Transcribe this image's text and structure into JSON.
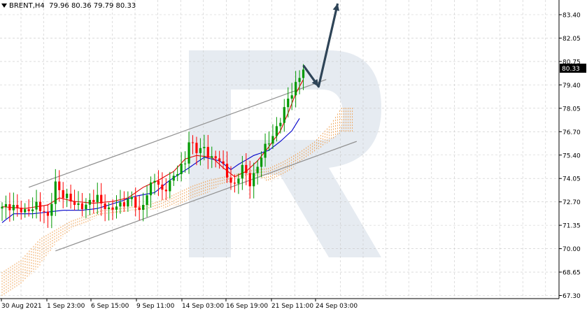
{
  "header": {
    "symbol": "BRENT,H4",
    "ohlc": "79.96 80.36 79.79 80.33"
  },
  "colors": {
    "bull_candle": "#009900",
    "bear_candle": "#ff0000",
    "tenkan": "#e00000",
    "kijun": "#0000cc",
    "cloud": "#f0a050",
    "channel": "#909090",
    "arrow": "#2e4457",
    "price_badge_bg": "#000000",
    "price_badge_fg": "#ffffff",
    "watermark": "#e6ebf1"
  },
  "chart_data": {
    "type": "candlestick",
    "indicators": [
      "Ichimoku Kinko Hyo"
    ],
    "ylim": [
      67.3,
      84.2
    ],
    "y_ticks": [
      "83.40",
      "82.05",
      "80.75",
      "79.40",
      "78.05",
      "76.70",
      "75.40",
      "74.05",
      "72.70",
      "71.35",
      "70.00",
      "68.65",
      "67.30"
    ],
    "current_price_label": "80.33",
    "x_ticks": [
      "30 Aug 2021",
      "1 Sep 23:00",
      "6 Sep 15:00",
      "9 Sep 11:00",
      "14 Sep 03:00",
      "16 Sep 19:00",
      "21 Sep 11:00",
      "24 Sep 03:00"
    ],
    "grid": true,
    "price_path": [
      [
        0,
        72.4
      ],
      [
        3,
        72.6
      ],
      [
        6,
        72.1
      ],
      [
        9,
        72.7
      ],
      [
        12,
        71.8
      ],
      [
        14,
        73.9
      ],
      [
        16,
        73.1
      ],
      [
        19,
        72.7
      ],
      [
        22,
        72.5
      ],
      [
        25,
        73.1
      ],
      [
        28,
        72.2
      ],
      [
        31,
        72.7
      ],
      [
        34,
        72.9
      ],
      [
        36,
        72.2
      ],
      [
        38,
        73.3
      ],
      [
        40,
        74.0
      ],
      [
        42,
        73.4
      ],
      [
        44,
        73.9
      ],
      [
        46,
        74.4
      ],
      [
        48,
        75.1
      ],
      [
        49,
        76.3
      ],
      [
        51,
        75.6
      ],
      [
        53,
        75.8
      ],
      [
        55,
        75.3
      ],
      [
        57,
        75.1
      ],
      [
        59,
        74.3
      ],
      [
        61,
        73.7
      ],
      [
        63,
        74.7
      ],
      [
        65,
        73.9
      ],
      [
        67,
        74.8
      ],
      [
        69,
        75.8
      ],
      [
        71,
        76.6
      ],
      [
        73,
        77.4
      ],
      [
        75,
        78.5
      ],
      [
        77,
        79.5
      ],
      [
        79,
        80.3
      ]
    ],
    "tenkan_sen": [
      [
        0,
        72.5
      ],
      [
        6,
        72.4
      ],
      [
        12,
        72.6
      ],
      [
        15,
        73.0
      ],
      [
        19,
        72.8
      ],
      [
        24,
        72.7
      ],
      [
        29,
        72.8
      ],
      [
        33,
        73.0
      ],
      [
        37,
        73.6
      ],
      [
        41,
        74.0
      ],
      [
        45,
        74.5
      ],
      [
        48,
        75.2
      ],
      [
        51,
        75.4
      ],
      [
        55,
        75.3
      ],
      [
        58,
        74.7
      ],
      [
        61,
        74.2
      ],
      [
        64,
        74.5
      ],
      [
        67,
        75.1
      ],
      [
        70,
        75.9
      ],
      [
        73,
        76.8
      ],
      [
        75,
        77.8
      ],
      [
        77,
        78.9
      ],
      [
        79,
        79.7
      ]
    ],
    "kijun_sen": [
      [
        0,
        71.6
      ],
      [
        3,
        72.1
      ],
      [
        8,
        72.1
      ],
      [
        12,
        72.2
      ],
      [
        16,
        72.3
      ],
      [
        21,
        72.3
      ],
      [
        25,
        72.4
      ],
      [
        31,
        72.8
      ],
      [
        35,
        73.1
      ],
      [
        40,
        73.3
      ],
      [
        44,
        74.0
      ],
      [
        49,
        74.7
      ],
      [
        53,
        75.3
      ],
      [
        57,
        75.1
      ],
      [
        60,
        74.6
      ],
      [
        62,
        74.9
      ],
      [
        66,
        75.4
      ],
      [
        70,
        75.7
      ],
      [
        73,
        76.2
      ],
      [
        76,
        76.8
      ],
      [
        78,
        77.5
      ]
    ],
    "cloud_upper": [
      [
        0,
        68.8
      ],
      [
        5,
        69.5
      ],
      [
        10,
        70.7
      ],
      [
        14,
        71.2
      ],
      [
        18,
        71.7
      ],
      [
        22,
        72.0
      ],
      [
        26,
        72.3
      ],
      [
        30,
        72.4
      ],
      [
        34,
        72.5
      ],
      [
        38,
        72.6
      ],
      [
        42,
        72.9
      ],
      [
        46,
        73.3
      ],
      [
        50,
        73.7
      ],
      [
        54,
        74.0
      ],
      [
        58,
        74.2
      ],
      [
        62,
        74.4
      ],
      [
        66,
        74.6
      ],
      [
        70,
        74.7
      ],
      [
        74,
        75.1
      ],
      [
        78,
        75.6
      ],
      [
        82,
        76.2
      ],
      [
        86,
        77.1
      ],
      [
        89,
        78.1
      ]
    ],
    "cloud_lower": [
      [
        0,
        67.4
      ],
      [
        5,
        68.1
      ],
      [
        10,
        69.2
      ],
      [
        14,
        70.4
      ],
      [
        18,
        71.2
      ],
      [
        22,
        71.6
      ],
      [
        26,
        72.0
      ],
      [
        30,
        72.1
      ],
      [
        34,
        72.3
      ],
      [
        38,
        72.3
      ],
      [
        42,
        72.4
      ],
      [
        46,
        72.6
      ],
      [
        50,
        73.0
      ],
      [
        54,
        73.3
      ],
      [
        58,
        73.8
      ],
      [
        62,
        74.1
      ],
      [
        66,
        74.3
      ],
      [
        70,
        73.9
      ],
      [
        74,
        74.3
      ],
      [
        78,
        75.0
      ],
      [
        82,
        75.6
      ],
      [
        86,
        76.2
      ],
      [
        89,
        76.7
      ]
    ],
    "channel_upper": [
      [
        7,
        73.6
      ],
      [
        85,
        79.7
      ]
    ],
    "channel_lower": [
      [
        14,
        70.0
      ],
      [
        93,
        76.2
      ]
    ],
    "forecast_arrow": [
      [
        79,
        80.5
      ],
      [
        83,
        79.3
      ],
      [
        88,
        84.0
      ]
    ]
  }
}
